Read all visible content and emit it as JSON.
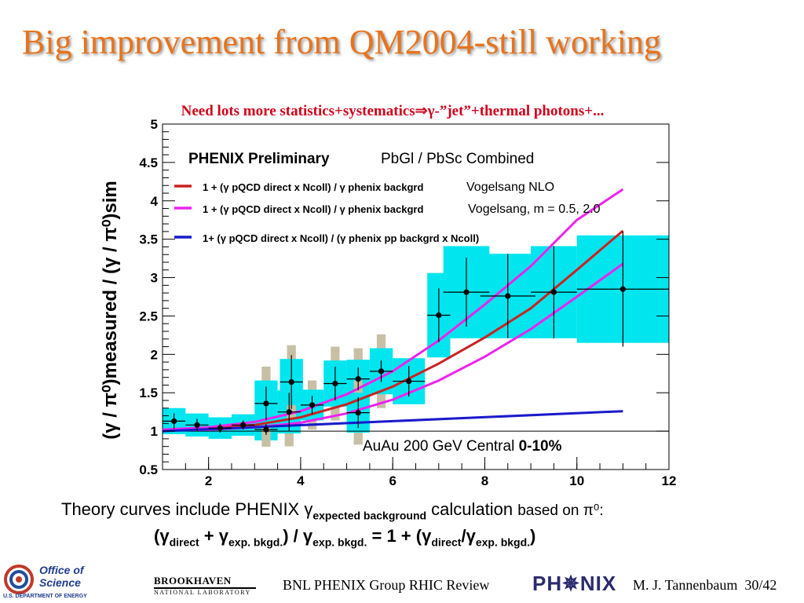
{
  "slide": {
    "title": "Big improvement from QM2004-still working",
    "subtitle": "Need lots more statistics+systematics⇒γ-”jet”+thermal photons+..."
  },
  "chart_data": {
    "type": "scatter",
    "title": "PHENIX Preliminary",
    "subtitle": "PbGl / PbSc Combined",
    "ylabel": "(γ / π⁰)measured / (γ / π⁰)sim",
    "xlabel": "",
    "xlim": [
      1,
      12
    ],
    "ylim": [
      0.5,
      5
    ],
    "xticks": [
      2,
      4,
      6,
      8,
      10,
      12
    ],
    "yticks": [
      0.5,
      1,
      1.5,
      2,
      2.5,
      3,
      3.5,
      4,
      4.5,
      5
    ],
    "annotation": "AuAu 200 GeV    Central ",
    "annotation_bold": "0-10%",
    "reference_line_y": 1,
    "points": [
      {
        "x": 1.25,
        "y": 1.13,
        "xerr": 0.25,
        "yerr": 0.1,
        "syst": 0.17
      },
      {
        "x": 1.75,
        "y": 1.08,
        "xerr": 0.25,
        "yerr": 0.08,
        "syst": 0.15
      },
      {
        "x": 2.25,
        "y": 1.04,
        "xerr": 0.25,
        "yerr": 0.06,
        "syst": 0.14
      },
      {
        "x": 2.75,
        "y": 1.08,
        "xerr": 0.25,
        "yerr": 0.06,
        "syst": 0.14
      },
      {
        "x": 3.25,
        "y": 1.02,
        "xerr": 0.25,
        "yerr": 0.07,
        "syst": 0.14
      },
      {
        "x": 3.25,
        "y": 1.36,
        "xerr": 0.25,
        "yerr": 0.22,
        "syst": 0.3
      },
      {
        "x": 3.75,
        "y": 1.25,
        "xerr": 0.25,
        "yerr": 0.25,
        "syst": 0.28
      },
      {
        "x": 3.8,
        "y": 1.64,
        "xerr": 0.25,
        "yerr": 0.35,
        "syst": 0.3
      },
      {
        "x": 4.25,
        "y": 1.34,
        "xerr": 0.25,
        "yerr": 0.12,
        "syst": 0.2
      },
      {
        "x": 4.75,
        "y": 1.62,
        "xerr": 0.25,
        "yerr": 0.22,
        "syst": 0.3
      },
      {
        "x": 5.25,
        "y": 1.68,
        "xerr": 0.25,
        "yerr": 0.15,
        "syst": 0.25
      },
      {
        "x": 5.25,
        "y": 1.24,
        "xerr": 0.25,
        "yerr": 0.2,
        "syst": 0.26
      },
      {
        "x": 5.75,
        "y": 1.78,
        "xerr": 0.25,
        "yerr": 0.14,
        "syst": 0.3
      },
      {
        "x": 6.35,
        "y": 1.65,
        "xerr": 0.35,
        "yerr": 0.2,
        "syst": 0.3
      },
      {
        "x": 7.0,
        "y": 2.51,
        "xerr": 0.25,
        "yerr": 0.35,
        "syst": 0.55
      },
      {
        "x": 7.6,
        "y": 2.81,
        "xerr": 0.5,
        "yerr": 0.45,
        "syst": 0.6
      },
      {
        "x": 8.5,
        "y": 2.76,
        "xerr": 0.6,
        "yerr": 0.55,
        "syst": 0.55
      },
      {
        "x": 9.5,
        "y": 2.81,
        "xerr": 0.5,
        "yerr": 0.6,
        "syst": 0.6
      },
      {
        "x": 11.0,
        "y": 2.85,
        "xerr": 1.0,
        "yerr": 0.75,
        "syst": 0.7
      }
    ],
    "series": [
      {
        "name": "1 + (γ pQCD direct x Ncoll) / γ phenix backgrd",
        "legend_note": "Vogelsang NLO",
        "color": "#cc2222",
        "x": [
          1,
          2,
          3,
          4,
          5,
          6,
          7,
          8,
          9,
          10,
          11
        ],
        "y": [
          1.02,
          1.03,
          1.08,
          1.18,
          1.35,
          1.58,
          1.88,
          2.22,
          2.6,
          3.1,
          3.61
        ]
      },
      {
        "name": "1 + (γ pQCD direct x Ncoll) / γ phenix backgrd",
        "legend_note": "Vogelsang, m = 0.5, 2.0",
        "color": "#ee22ee",
        "x": [
          1,
          2,
          3,
          4,
          5,
          6,
          7,
          8,
          9,
          10,
          11
        ],
        "y": [
          1.02,
          1.05,
          1.12,
          1.26,
          1.48,
          1.78,
          2.18,
          2.65,
          3.15,
          3.75,
          4.15
        ]
      },
      {
        "name": "",
        "color": "#ee22ee",
        "x": [
          1,
          2,
          3,
          4,
          5,
          6,
          7,
          8,
          9,
          10,
          11
        ],
        "y": [
          1.01,
          1.02,
          1.05,
          1.11,
          1.23,
          1.41,
          1.66,
          1.97,
          2.33,
          2.75,
          3.18
        ]
      },
      {
        "name": "1+ (γ pQCD direct x Ncoll) / (γ phenix pp backgrd x Ncoll)",
        "color": "#1a1acc",
        "x": [
          1,
          11
        ],
        "y": [
          1.0,
          1.26
        ]
      }
    ],
    "colors": {
      "stat_band": "#00e5ee",
      "syst_band": "#c8c0a6",
      "points": "#000000"
    }
  },
  "footer": {
    "theory_text": "Theory curves include PHENIX γ",
    "theory_sub": "expected background",
    "theory_after": " calculation ",
    "theory_small": "based on π⁰:",
    "formula_left": "(γ",
    "formula_direct": "direct",
    "formula_plus": " + γ",
    "formula_exp1": "exp. bkgd.",
    "formula_mid": ") / γ",
    "formula_exp2": "exp. bkgd.",
    "formula_eq": "   =  1 + (γ",
    "formula_direct2": "direct",
    "formula_slash": "/γ",
    "formula_exp3": "exp. bkgd.",
    "formula_end": ")"
  },
  "bottom_bar": {
    "office_logo_line1": "Office of",
    "office_logo_line2": "Science",
    "office_logo_line3": "U.S. DEPARTMENT OF ENERGY",
    "bnl_logo_line1": "BROOKHAVEN",
    "bnl_logo_line2": "NATIONAL LABORATORY",
    "center_text": "BNL PHENIX Group  RHIC Review",
    "phenix_logo": "PH✵NIX",
    "author": "M. J. Tannenbaum",
    "page": "30/42"
  }
}
